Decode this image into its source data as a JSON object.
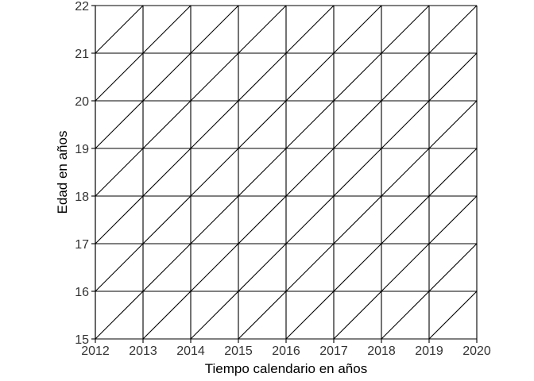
{
  "chart_data": {
    "type": "lexis-diagram",
    "xlabel": "Tiempo calendario en años",
    "ylabel": "Edad en años",
    "xlim": [
      2012,
      2020
    ],
    "ylim": [
      15,
      22
    ],
    "x_ticks": [
      2012,
      2013,
      2014,
      2015,
      2016,
      2017,
      2018,
      2019,
      2020
    ],
    "y_ticks": [
      15,
      16,
      17,
      18,
      19,
      20,
      21,
      22
    ],
    "grid": true,
    "diagonal_lifelines": true,
    "line_color": "#000000"
  }
}
